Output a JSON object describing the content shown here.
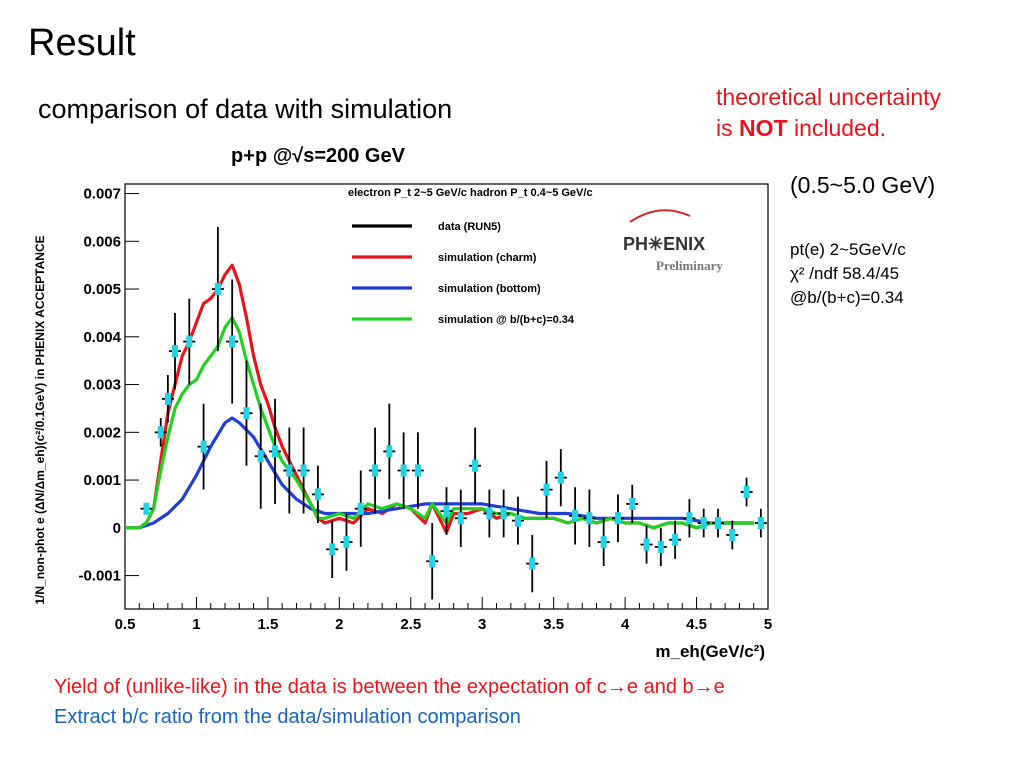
{
  "slide": {
    "title": "Result",
    "subtitle": "comparison of data with simulation",
    "note_line1": "theoretical uncertainty",
    "note_line2_pre": "is ",
    "note_line2_bold": "NOT",
    "note_line2_post": "  included.",
    "range": "(0.5~5.0 GeV)",
    "fit_line1": "pt(e) 2~5GeV/c",
    "fit_line2": "χ² /ndf  58.4/45",
    "fit_line3": "@b/(b+c)=0.34",
    "bottom_line1": "Yield of (unlike-like) in the data is between the expectation of c→e and b→e",
    "bottom_line2": "Extract b/c ratio from the data/simulation comparison"
  },
  "chart_data": {
    "type": "line",
    "title": "p+p @√s=200 GeV",
    "cuts_label": "electron P_t 2~5 GeV/c  hadron P_t 0.4~5 GeV/c",
    "xlabel": "m_eh(GeV/c²)",
    "ylabel": "1/N_non-phot e (ΔN/Δm_eh)(c²/0.1GeV) in PHENIX ACCEPTANCE",
    "xlim": [
      0.5,
      5.0
    ],
    "ylim": [
      -0.0017,
      0.0072
    ],
    "xticks": [
      "0.5",
      "1",
      "1.5",
      "2",
      "2.5",
      "3",
      "3.5",
      "4",
      "4.5",
      "5"
    ],
    "yticks": [
      "-0.001",
      "0",
      "0.001",
      "0.002",
      "0.003",
      "0.004",
      "0.005",
      "0.006",
      "0.007"
    ],
    "logo_text": "PH✳ENIX",
    "logo_sub": "Preliminary",
    "legend_position": "top-right",
    "colors": {
      "data": "#000000",
      "charm": "#e8141b",
      "bottom": "#1f3fd6",
      "mix": "#22d022",
      "marker": "#22d3e6"
    },
    "series": [
      {
        "name": "data (RUN5)",
        "kind": "points",
        "x": [
          0.65,
          0.75,
          0.8,
          0.85,
          0.95,
          1.05,
          1.15,
          1.25,
          1.35,
          1.45,
          1.55,
          1.65,
          1.75,
          1.85,
          1.95,
          2.05,
          2.15,
          2.25,
          2.35,
          2.45,
          2.55,
          2.65,
          2.75,
          2.85,
          2.95,
          3.05,
          3.15,
          3.25,
          3.35,
          3.45,
          3.55,
          3.65,
          3.75,
          3.85,
          3.95,
          4.05,
          4.15,
          4.25,
          4.35,
          4.45,
          4.55,
          4.65,
          4.75,
          4.85,
          4.95
        ],
        "y": [
          0.0004,
          0.002,
          0.0027,
          0.0037,
          0.0039,
          0.0017,
          0.005,
          0.0039,
          0.0024,
          0.0015,
          0.0016,
          0.0012,
          0.0012,
          0.0007,
          -0.00045,
          -0.0003,
          0.0004,
          0.0012,
          0.0016,
          0.0012,
          0.0012,
          -0.0007,
          0.00035,
          0.0002,
          0.0013,
          0.0003,
          0.0003,
          0.00015,
          -0.00075,
          0.0008,
          0.00105,
          0.00025,
          0.0002,
          -0.0003,
          0.0002,
          0.0005,
          -0.00035,
          -0.0004,
          -0.00025,
          0.0002,
          0.0001,
          0.0001,
          -0.00015,
          0.00075,
          0.0001
        ],
        "err": [
          0.0001,
          0.0003,
          0.0005,
          0.0008,
          0.0009,
          0.0009,
          0.0013,
          0.0013,
          0.0011,
          0.0011,
          0.0011,
          0.0009,
          0.0009,
          0.0006,
          0.0006,
          0.0006,
          0.0008,
          0.0009,
          0.001,
          0.0008,
          0.0008,
          0.0008,
          0.0005,
          0.0006,
          0.0008,
          0.0005,
          0.0005,
          0.0005,
          0.0006,
          0.0006,
          0.0006,
          0.0006,
          0.0006,
          0.0005,
          0.0005,
          0.0004,
          0.0004,
          0.0004,
          0.0004,
          0.0004,
          0.0003,
          0.0003,
          0.0003,
          0.0003,
          0.0003
        ]
      },
      {
        "name": "simulation (charm)",
        "kind": "line",
        "x": [
          0.5,
          0.6,
          0.65,
          0.7,
          0.75,
          0.8,
          0.85,
          0.9,
          0.95,
          1.0,
          1.05,
          1.1,
          1.15,
          1.2,
          1.25,
          1.3,
          1.35,
          1.4,
          1.45,
          1.5,
          1.55,
          1.6,
          1.65,
          1.7,
          1.75,
          1.8,
          1.85,
          1.9,
          2.0,
          2.1,
          2.2,
          2.3,
          2.4,
          2.5,
          2.6,
          2.65,
          2.7,
          2.75,
          2.8,
          2.9,
          3.0,
          3.1,
          3.2,
          3.3,
          3.4,
          3.5,
          3.6,
          3.7,
          3.8,
          3.9,
          4.0,
          4.1,
          4.2,
          4.3,
          4.4,
          4.5,
          4.6,
          4.7,
          4.8,
          4.9
        ],
        "y": [
          0,
          0,
          0.0001,
          0.0004,
          0.0014,
          0.0024,
          0.003,
          0.0036,
          0.0039,
          0.0043,
          0.0047,
          0.0048,
          0.005,
          0.0053,
          0.0055,
          0.0051,
          0.0044,
          0.0036,
          0.003,
          0.0026,
          0.0021,
          0.0017,
          0.0014,
          0.0011,
          0.0008,
          0.0005,
          0.0002,
          0.0001,
          0.0002,
          0.0001,
          0.0004,
          0.0003,
          0.0005,
          0.0004,
          0.0001,
          0.0005,
          0.0002,
          -0.0001,
          0.0003,
          0.0003,
          0.0004,
          0.0002,
          0.0003,
          0.0002,
          0.0002,
          0.0002,
          0.0001,
          0.0002,
          0.0001,
          0.0002,
          0.0001,
          0.0001,
          0,
          0.0001,
          0.0001,
          0,
          0.0001,
          0.0001,
          0.0001,
          0.0001
        ]
      },
      {
        "name": "simulation (bottom)",
        "kind": "line",
        "x": [
          0.5,
          0.6,
          0.7,
          0.8,
          0.9,
          1.0,
          1.1,
          1.2,
          1.25,
          1.3,
          1.4,
          1.5,
          1.6,
          1.7,
          1.8,
          1.9,
          2.0,
          2.2,
          2.4,
          2.6,
          2.8,
          3.0,
          3.2,
          3.4,
          3.6,
          3.8,
          4.0,
          4.2,
          4.4,
          4.6,
          4.8,
          4.9
        ],
        "y": [
          0,
          0,
          0.0001,
          0.0003,
          0.0006,
          0.0011,
          0.0017,
          0.0022,
          0.0023,
          0.0022,
          0.0019,
          0.0014,
          0.0009,
          0.0006,
          0.0004,
          0.0003,
          0.0003,
          0.0003,
          0.0004,
          0.0005,
          0.0005,
          0.0005,
          0.0004,
          0.0003,
          0.0003,
          0.0002,
          0.0002,
          0.0002,
          0.0002,
          0.0001,
          0.0001,
          0.0001
        ]
      },
      {
        "name": "simulation @ b/(b+c)=0.34",
        "kind": "line",
        "x": [
          0.5,
          0.6,
          0.65,
          0.7,
          0.75,
          0.8,
          0.85,
          0.9,
          0.95,
          1.0,
          1.05,
          1.1,
          1.15,
          1.2,
          1.25,
          1.3,
          1.35,
          1.4,
          1.45,
          1.5,
          1.55,
          1.6,
          1.7,
          1.8,
          1.85,
          1.9,
          2.0,
          2.1,
          2.2,
          2.3,
          2.4,
          2.5,
          2.6,
          2.65,
          2.7,
          2.75,
          2.8,
          2.9,
          3.0,
          3.1,
          3.2,
          3.3,
          3.4,
          3.5,
          3.6,
          3.7,
          3.8,
          3.9,
          4.0,
          4.1,
          4.2,
          4.3,
          4.4,
          4.5,
          4.6,
          4.7,
          4.8,
          4.9
        ],
        "y": [
          0,
          0,
          0.0001,
          0.0004,
          0.0012,
          0.0019,
          0.0025,
          0.0028,
          0.003,
          0.0031,
          0.0034,
          0.0036,
          0.0038,
          0.0042,
          0.0044,
          0.0041,
          0.0035,
          0.003,
          0.0025,
          0.0021,
          0.0017,
          0.0014,
          0.001,
          0.0005,
          0.0002,
          0.0002,
          0.0003,
          0.0002,
          0.0005,
          0.0004,
          0.0005,
          0.0004,
          0.0002,
          0.0005,
          0.0003,
          0.0001,
          0.0004,
          0.0004,
          0.0004,
          0.0003,
          0.0003,
          0.0002,
          0.0002,
          0.0002,
          0.0001,
          0.0002,
          0.0001,
          0.0002,
          0.0001,
          0.0001,
          0,
          0.0001,
          0.0001,
          0,
          0.0001,
          0.0001,
          0.0001,
          0.0001
        ]
      }
    ]
  }
}
